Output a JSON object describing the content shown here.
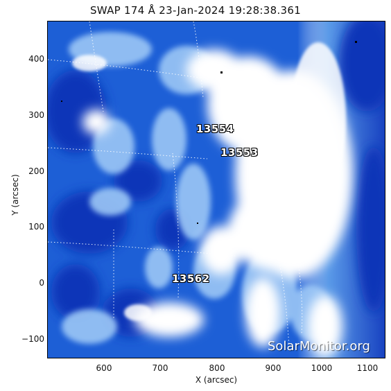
{
  "title": "SWAP 174 Å 23-Jan-2024 19:28:38.361",
  "x_axis": {
    "label": "X (arcsec)",
    "ticks": [
      "600",
      "700",
      "800",
      "900",
      "1000",
      "1100"
    ]
  },
  "y_axis": {
    "label": "Y (arcsec)",
    "ticks": [
      "400",
      "300",
      "200",
      "100",
      "0",
      "−100"
    ]
  },
  "active_regions": [
    "13554",
    "13553",
    "13562"
  ],
  "watermark": "SolarMonitor.org",
  "colors": {
    "deep": "#0b2fb0",
    "mid": "#1f63d8",
    "light": "#8fc0f5",
    "bright": "#ffffff"
  }
}
